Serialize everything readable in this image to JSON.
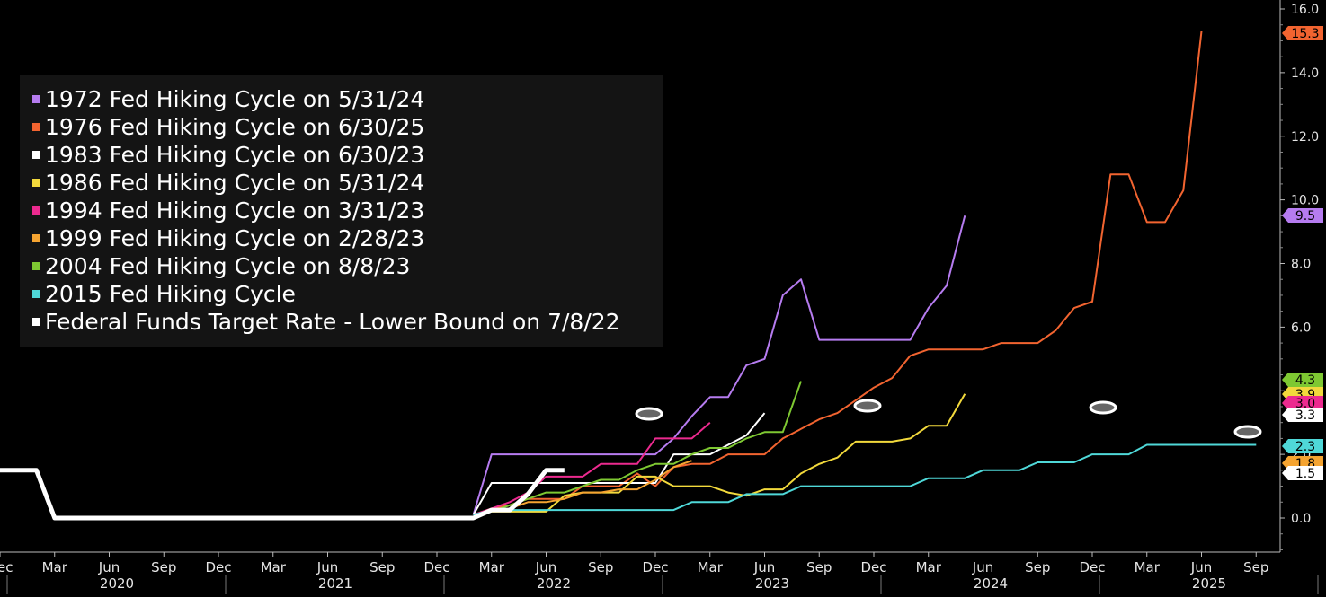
{
  "chart_data": {
    "type": "line",
    "x_axis": {
      "month_labels": [
        "Dec",
        "Mar",
        "Jun",
        "Sep",
        "Dec",
        "Mar",
        "Jun",
        "Sep",
        "Dec",
        "Mar",
        "Jun",
        "Sep",
        "Dec",
        "Mar",
        "Jun",
        "Sep",
        "Dec",
        "Mar",
        "Jun",
        "Sep",
        "Dec",
        "Mar",
        "Jun",
        "Sep"
      ],
      "year_labels": [
        "2020",
        "2021",
        "2022",
        "2023",
        "2024",
        "2025"
      ]
    },
    "y_axis": {
      "position": "right",
      "ticks": [
        "0.0",
        "2.0",
        "4.0",
        "6.0",
        "8.0",
        "10.0",
        "12.0",
        "14.0",
        "16.0"
      ],
      "range": [
        -1,
        16.2
      ]
    },
    "legend": {
      "placement": "top-left"
    },
    "series": [
      {
        "name": "1972 Fed Hiking Cycle on 5/31/24",
        "color": "#b67cf0",
        "end_label": "9.5",
        "points": [
          [
            "2022-02",
            0.1
          ],
          [
            "2022-03",
            2.0
          ],
          [
            "2022-04",
            2.0
          ],
          [
            "2022-05",
            2.0
          ],
          [
            "2022-06",
            2.0
          ],
          [
            "2022-07",
            2.0
          ],
          [
            "2022-08",
            2.0
          ],
          [
            "2022-09",
            2.0
          ],
          [
            "2022-10",
            2.0
          ],
          [
            "2022-11",
            2.0
          ],
          [
            "2022-12",
            2.0
          ],
          [
            "2023-01",
            2.5
          ],
          [
            "2023-02",
            3.2
          ],
          [
            "2023-03",
            3.8
          ],
          [
            "2023-04",
            3.8
          ],
          [
            "2023-05",
            4.8
          ],
          [
            "2023-06",
            5.0
          ],
          [
            "2023-07",
            7.0
          ],
          [
            "2023-08",
            7.5
          ],
          [
            "2023-09",
            5.6
          ],
          [
            "2023-10",
            5.6
          ],
          [
            "2023-11",
            5.6
          ],
          [
            "2023-12",
            5.6
          ],
          [
            "2024-01",
            5.6
          ],
          [
            "2024-02",
            5.6
          ],
          [
            "2024-03",
            6.6
          ],
          [
            "2024-04",
            7.3
          ],
          [
            "2024-05",
            9.5
          ]
        ]
      },
      {
        "name": "1976 Fed Hiking Cycle on 6/30/25",
        "color": "#f26430",
        "end_label": "15.3",
        "points": [
          [
            "2022-02",
            0.1
          ],
          [
            "2022-03",
            0.3
          ],
          [
            "2022-04",
            0.4
          ],
          [
            "2022-05",
            0.6
          ],
          [
            "2022-06",
            0.6
          ],
          [
            "2022-07",
            0.6
          ],
          [
            "2022-08",
            1.0
          ],
          [
            "2022-09",
            1.0
          ],
          [
            "2022-10",
            1.0
          ],
          [
            "2022-11",
            1.4
          ],
          [
            "2022-12",
            1.0
          ],
          [
            "2023-01",
            1.6
          ],
          [
            "2023-02",
            1.7
          ],
          [
            "2023-03",
            1.7
          ],
          [
            "2023-04",
            2.0
          ],
          [
            "2023-05",
            2.0
          ],
          [
            "2023-06",
            2.0
          ],
          [
            "2023-07",
            2.5
          ],
          [
            "2023-08",
            2.8
          ],
          [
            "2023-09",
            3.1
          ],
          [
            "2023-10",
            3.3
          ],
          [
            "2023-11",
            3.7
          ],
          [
            "2023-12",
            4.1
          ],
          [
            "2024-01",
            4.4
          ],
          [
            "2024-02",
            5.1
          ],
          [
            "2024-03",
            5.3
          ],
          [
            "2024-04",
            5.3
          ],
          [
            "2024-05",
            5.3
          ],
          [
            "2024-06",
            5.3
          ],
          [
            "2024-07",
            5.5
          ],
          [
            "2024-08",
            5.5
          ],
          [
            "2024-09",
            5.5
          ],
          [
            "2024-10",
            5.9
          ],
          [
            "2024-11",
            6.6
          ],
          [
            "2024-12",
            6.8
          ],
          [
            "2025-01",
            10.8
          ],
          [
            "2025-02",
            10.8
          ],
          [
            "2025-03",
            9.3
          ],
          [
            "2025-04",
            9.3
          ],
          [
            "2025-05",
            10.3
          ],
          [
            "2025-06",
            15.3
          ]
        ]
      },
      {
        "name": "1983 Fed Hiking Cycle on 6/30/23",
        "color": "#ffffff",
        "end_label": "3.3",
        "points": [
          [
            "2022-02",
            0.1
          ],
          [
            "2022-03",
            1.1
          ],
          [
            "2022-04",
            1.1
          ],
          [
            "2022-05",
            1.1
          ],
          [
            "2022-06",
            1.1
          ],
          [
            "2022-07",
            1.1
          ],
          [
            "2022-08",
            1.1
          ],
          [
            "2022-09",
            1.1
          ],
          [
            "2022-10",
            1.1
          ],
          [
            "2022-11",
            1.1
          ],
          [
            "2022-12",
            1.1
          ],
          [
            "2023-01",
            2.0
          ],
          [
            "2023-02",
            2.0
          ],
          [
            "2023-03",
            2.0
          ],
          [
            "2023-04",
            2.3
          ],
          [
            "2023-05",
            2.6
          ],
          [
            "2023-06",
            3.3
          ]
        ]
      },
      {
        "name": "1986 Fed Hiking Cycle on 5/31/24",
        "color": "#f2d93c",
        "end_label": "3.9",
        "points": [
          [
            "2022-02",
            0.1
          ],
          [
            "2022-03",
            0.2
          ],
          [
            "2022-04",
            0.2
          ],
          [
            "2022-05",
            0.2
          ],
          [
            "2022-06",
            0.2
          ],
          [
            "2022-07",
            0.7
          ],
          [
            "2022-08",
            0.8
          ],
          [
            "2022-09",
            0.8
          ],
          [
            "2022-10",
            0.8
          ],
          [
            "2022-11",
            1.3
          ],
          [
            "2022-12",
            1.3
          ],
          [
            "2023-01",
            1.0
          ],
          [
            "2023-02",
            1.0
          ],
          [
            "2023-03",
            1.0
          ],
          [
            "2023-04",
            0.8
          ],
          [
            "2023-05",
            0.7
          ],
          [
            "2023-06",
            0.9
          ],
          [
            "2023-07",
            0.9
          ],
          [
            "2023-08",
            1.4
          ],
          [
            "2023-09",
            1.7
          ],
          [
            "2023-10",
            1.9
          ],
          [
            "2023-11",
            2.4
          ],
          [
            "2023-12",
            2.4
          ],
          [
            "2024-01",
            2.4
          ],
          [
            "2024-02",
            2.5
          ],
          [
            "2024-03",
            2.9
          ],
          [
            "2024-04",
            2.9
          ],
          [
            "2024-05",
            3.9
          ]
        ]
      },
      {
        "name": "1994 Fed Hiking Cycle on 3/31/23",
        "color": "#ec2a8f",
        "end_label": "3.0",
        "points": [
          [
            "2022-02",
            0.1
          ],
          [
            "2022-03",
            0.3
          ],
          [
            "2022-04",
            0.5
          ],
          [
            "2022-05",
            0.8
          ],
          [
            "2022-06",
            1.3
          ],
          [
            "2022-07",
            1.3
          ],
          [
            "2022-08",
            1.3
          ],
          [
            "2022-09",
            1.7
          ],
          [
            "2022-10",
            1.7
          ],
          [
            "2022-11",
            1.7
          ],
          [
            "2022-12",
            2.5
          ],
          [
            "2023-01",
            2.5
          ],
          [
            "2023-02",
            2.5
          ],
          [
            "2023-03",
            3.0
          ]
        ]
      },
      {
        "name": "1999 Fed Hiking Cycle on 2/28/23",
        "color": "#f5a431",
        "end_label": "1.8",
        "points": [
          [
            "2022-02",
            0.1
          ],
          [
            "2022-03",
            0.2
          ],
          [
            "2022-04",
            0.3
          ],
          [
            "2022-05",
            0.5
          ],
          [
            "2022-06",
            0.5
          ],
          [
            "2022-07",
            0.6
          ],
          [
            "2022-08",
            0.8
          ],
          [
            "2022-09",
            0.8
          ],
          [
            "2022-10",
            0.9
          ],
          [
            "2022-11",
            0.9
          ],
          [
            "2022-12",
            1.2
          ],
          [
            "2023-01",
            1.6
          ],
          [
            "2023-02",
            1.8
          ]
        ]
      },
      {
        "name": "2004 Fed Hiking Cycle on 8/8/23",
        "color": "#7ec832",
        "end_label": "4.3",
        "points": [
          [
            "2022-02",
            0.1
          ],
          [
            "2022-03",
            0.2
          ],
          [
            "2022-04",
            0.4
          ],
          [
            "2022-05",
            0.6
          ],
          [
            "2022-06",
            0.8
          ],
          [
            "2022-07",
            0.8
          ],
          [
            "2022-08",
            1.0
          ],
          [
            "2022-09",
            1.2
          ],
          [
            "2022-10",
            1.2
          ],
          [
            "2022-11",
            1.5
          ],
          [
            "2022-12",
            1.7
          ],
          [
            "2023-01",
            1.7
          ],
          [
            "2023-02",
            2.0
          ],
          [
            "2023-03",
            2.2
          ],
          [
            "2023-04",
            2.2
          ],
          [
            "2023-05",
            2.5
          ],
          [
            "2023-06",
            2.7
          ],
          [
            "2023-07",
            2.7
          ],
          [
            "2023-08",
            4.3
          ]
        ]
      },
      {
        "name": "2015 Fed Hiking Cycle",
        "color": "#4fd8d8",
        "end_label": "2.3",
        "points": [
          [
            "2022-02",
            0.1
          ],
          [
            "2022-03",
            0.25
          ],
          [
            "2022-12",
            0.25
          ],
          [
            "2023-01",
            0.25
          ],
          [
            "2023-02",
            0.5
          ],
          [
            "2023-04",
            0.5
          ],
          [
            "2023-05",
            0.75
          ],
          [
            "2023-07",
            0.75
          ],
          [
            "2023-08",
            1.0
          ],
          [
            "2024-02",
            1.0
          ],
          [
            "2024-03",
            1.25
          ],
          [
            "2024-05",
            1.25
          ],
          [
            "2024-06",
            1.5
          ],
          [
            "2024-08",
            1.5
          ],
          [
            "2024-09",
            1.75
          ],
          [
            "2024-11",
            1.75
          ],
          [
            "2024-12",
            2.0
          ],
          [
            "2025-02",
            2.0
          ],
          [
            "2025-03",
            2.3
          ],
          [
            "2025-09",
            2.3
          ]
        ]
      },
      {
        "name": "Federal Funds Target Rate - Lower Bound on 7/8/22",
        "color": "#ffffff",
        "thick": true,
        "end_label": "1.5",
        "points": [
          [
            "2019-12",
            1.5
          ],
          [
            "2020-02",
            1.5
          ],
          [
            "2020-03",
            0.0
          ],
          [
            "2022-02",
            0.0
          ],
          [
            "2022-03",
            0.25
          ],
          [
            "2022-04",
            0.25
          ],
          [
            "2022-05",
            0.75
          ],
          [
            "2022-06",
            1.5
          ],
          [
            "2022-07",
            1.5
          ]
        ]
      }
    ],
    "end_label_order": [
      "15.3",
      "9.5",
      "4.3",
      "3.9",
      "3.0",
      "3.3",
      "2.3",
      "1.8",
      "1.5"
    ]
  }
}
